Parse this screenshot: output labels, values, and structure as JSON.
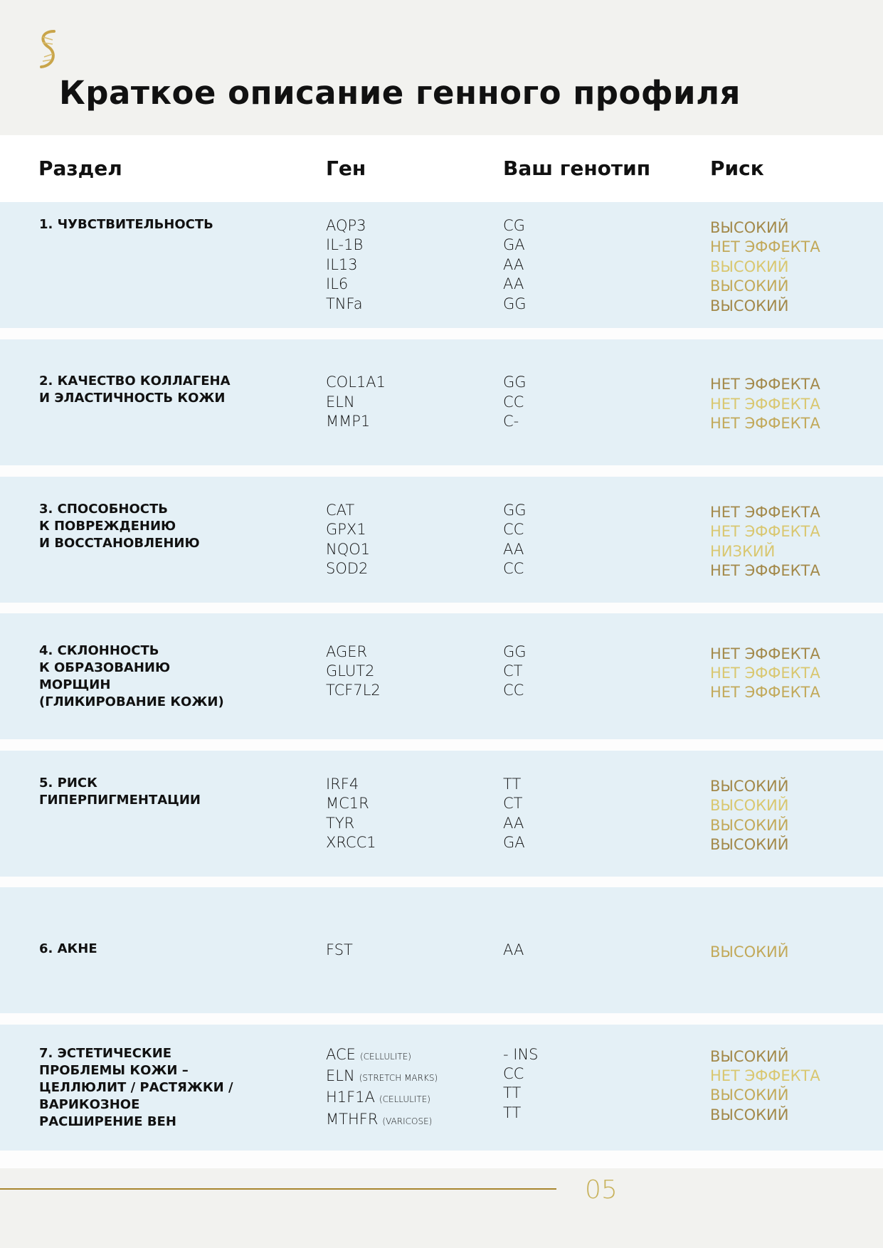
{
  "title": "Краткое описание генного профиля",
  "colors": {
    "gold_dark": "#a3894a",
    "gold_mid": "#c2a95a",
    "gold_light": "#d9c770",
    "row_bg": "#e4f0f6",
    "page_bg": "#f2f2ef"
  },
  "header": {
    "section": "Раздел",
    "gene": "Ген",
    "genotype": "Ваш генотип",
    "risk": "Риск"
  },
  "sections": [
    {
      "label": [
        "1. ЧУВСТВИТЕЛЬНОСТЬ"
      ],
      "rows": [
        {
          "gene": "AQP3",
          "genotype": "CG",
          "risk": "ВЫСОКИЙ",
          "tone": "dark"
        },
        {
          "gene": "IL-1B",
          "genotype": "GA",
          "risk": "НЕТ ЭФФЕКТА",
          "tone": "mid"
        },
        {
          "gene": "IL13",
          "genotype": "AA",
          "risk": "ВЫСОКИЙ",
          "tone": "light"
        },
        {
          "gene": "IL6",
          "genotype": "AA",
          "risk": "ВЫСОКИЙ",
          "tone": "mid"
        },
        {
          "gene": "TNFa",
          "genotype": "GG",
          "risk": "ВЫСОКИЙ",
          "tone": "dark"
        }
      ]
    },
    {
      "label": [
        "2. КАЧЕСТВО КОЛЛАГЕНА",
        "И ЭЛАСТИЧНОСТЬ КОЖИ"
      ],
      "rows": [
        {
          "gene": "COL1A1",
          "genotype": "GG",
          "risk": "НЕТ ЭФФЕКТА",
          "tone": "dark"
        },
        {
          "gene": "ELN",
          "genotype": "CC",
          "risk": "НЕТ ЭФФЕКТА",
          "tone": "light"
        },
        {
          "gene": "MMP1",
          "genotype": "C-",
          "risk": "НЕТ ЭФФЕКТА",
          "tone": "mid"
        }
      ]
    },
    {
      "label": [
        "3. СПОСОБНОСТЬ",
        "К ПОВРЕЖДЕНИЮ",
        "И ВОССТАНОВЛЕНИЮ"
      ],
      "rows": [
        {
          "gene": "CAT",
          "genotype": "GG",
          "risk": "НЕТ ЭФФЕКТА",
          "tone": "dark"
        },
        {
          "gene": "GPX1",
          "genotype": "CC",
          "risk": "НЕТ ЭФФЕКТА",
          "tone": "light"
        },
        {
          "gene": "NQO1",
          "genotype": "AA",
          "risk": "НИЗКИЙ",
          "tone": "light"
        },
        {
          "gene": "SOD2",
          "genotype": "CC",
          "risk": "НЕТ ЭФФЕКТА",
          "tone": "dark"
        }
      ]
    },
    {
      "label": [
        "4. СКЛОННОСТЬ",
        "К ОБРАЗОВАНИЮ",
        "МОРЩИН",
        "(ГЛИКИРОВАНИЕ КОЖИ)"
      ],
      "rows": [
        {
          "gene": "AGER",
          "genotype": "GG",
          "risk": "НЕТ ЭФФЕКТА",
          "tone": "dark"
        },
        {
          "gene": "GLUT2",
          "genotype": "CT",
          "risk": "НЕТ ЭФФЕКТА",
          "tone": "light"
        },
        {
          "gene": "TCF7L2",
          "genotype": "CC",
          "risk": "НЕТ ЭФФЕКТА",
          "tone": "mid"
        }
      ]
    },
    {
      "label": [
        "5. РИСК",
        "ГИПЕРПИГМЕНТАЦИИ"
      ],
      "rows": [
        {
          "gene": "IRF4",
          "genotype": "TT",
          "risk": "ВЫСОКИЙ",
          "tone": "dark"
        },
        {
          "gene": "MC1R",
          "genotype": "CT",
          "risk": "ВЫСОКИЙ",
          "tone": "light"
        },
        {
          "gene": "TYR",
          "genotype": "AA",
          "risk": "ВЫСОКИЙ",
          "tone": "mid"
        },
        {
          "gene": "XRCC1",
          "genotype": "GA",
          "risk": "ВЫСОКИЙ",
          "tone": "dark"
        }
      ]
    },
    {
      "label": [
        "6. АКНЕ"
      ],
      "rows": [
        {
          "gene": "FST",
          "genotype": "AA",
          "risk": "ВЫСОКИЙ",
          "tone": "mid"
        }
      ]
    },
    {
      "label": [
        "7. ЭСТЕТИЧЕСКИЕ",
        "ПРОБЛЕМЫ КОЖИ –",
        "ЦЕЛЛЮЛИТ / РАСТЯЖКИ /",
        "ВАРИКОЗНОЕ",
        "РАСШИРЕНИЕ ВЕН"
      ],
      "rows": [
        {
          "gene": "ACE",
          "note": "(CELLULITE)",
          "genotype": "- INS",
          "risk": "ВЫСОКИЙ",
          "tone": "dark"
        },
        {
          "gene": "ELN",
          "note": "(STRETCH MARKS)",
          "genotype": "CC",
          "risk": "НЕТ ЭФФЕКТА",
          "tone": "light"
        },
        {
          "gene": "H1F1A",
          "note": "(CELLULITE)",
          "genotype": "TT",
          "risk": "ВЫСОКИЙ",
          "tone": "mid"
        },
        {
          "gene": "MTHFR",
          "note": "(VARICOSE)",
          "genotype": "TT",
          "risk": "ВЫСОКИЙ",
          "tone": "dark"
        }
      ]
    }
  ],
  "footer": {
    "page_number": "05"
  }
}
